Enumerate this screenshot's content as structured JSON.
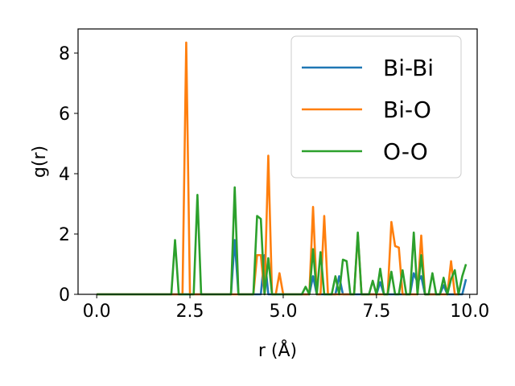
{
  "chart_data": {
    "type": "line",
    "title": "",
    "xlabel": "r (Å)",
    "ylabel": "g(r)",
    "xlim": [
      -0.5,
      10.2
    ],
    "ylim": [
      0,
      8.8
    ],
    "xticks": [
      0.0,
      2.5,
      5.0,
      7.5,
      10.0
    ],
    "xtick_labels": [
      "0.0",
      "2.5",
      "5.0",
      "7.5",
      "10.0"
    ],
    "yticks": [
      0,
      2,
      4,
      6,
      8
    ],
    "ytick_labels": [
      "0",
      "2",
      "4",
      "6",
      "8"
    ],
    "grid": false,
    "legend_position": "upper-right",
    "series": [
      {
        "name": "Bi-Bi",
        "color": "#1f77b4",
        "x": [
          0.0,
          3.6,
          3.7,
          3.8,
          4.4,
          4.5,
          4.6,
          5.7,
          5.8,
          5.9,
          6.4,
          6.5,
          6.6,
          7.5,
          7.6,
          7.7,
          8.4,
          8.5,
          8.6,
          8.7,
          8.8,
          9.2,
          9.3,
          9.4,
          9.8,
          9.9
        ],
        "y": [
          0.0,
          0.0,
          1.8,
          0.0,
          0.0,
          1.3,
          0.0,
          0.0,
          0.6,
          0.0,
          0.0,
          0.6,
          0.0,
          0.0,
          0.4,
          0.0,
          0.0,
          0.7,
          0.4,
          0.6,
          0.0,
          0.0,
          0.3,
          0.0,
          0.0,
          0.5
        ]
      },
      {
        "name": "Bi-O",
        "color": "#ff7f0e",
        "x": [
          0.0,
          2.3,
          2.4,
          2.5,
          4.2,
          4.3,
          4.4,
          4.5,
          4.6,
          4.7,
          4.8,
          4.9,
          5.0,
          5.7,
          5.8,
          5.9,
          6.0,
          6.1,
          6.2,
          6.8,
          6.9,
          7.0,
          7.1,
          7.8,
          7.9,
          8.0,
          8.1,
          8.2,
          8.6,
          8.7,
          8.8,
          9.3,
          9.4,
          9.5,
          9.6,
          9.7
        ],
        "y": [
          0.0,
          0.0,
          8.35,
          0.0,
          0.0,
          1.3,
          1.3,
          0.0,
          4.6,
          0.0,
          0.0,
          0.7,
          0.0,
          0.0,
          2.9,
          0.0,
          0.0,
          2.6,
          0.0,
          0.0,
          0.0,
          2.0,
          0.0,
          0.0,
          2.4,
          1.6,
          1.55,
          0.0,
          0.0,
          1.95,
          0.0,
          0.0,
          0.0,
          1.1,
          0.0,
          0.0
        ]
      },
      {
        "name": "O-O",
        "color": "#2ca02c",
        "x": [
          0.0,
          2.0,
          2.1,
          2.2,
          2.6,
          2.7,
          2.8,
          3.6,
          3.7,
          3.8,
          4.2,
          4.3,
          4.4,
          4.5,
          4.6,
          4.7,
          5.5,
          5.6,
          5.7,
          5.8,
          5.9,
          6.0,
          6.1,
          6.2,
          6.3,
          6.4,
          6.5,
          6.6,
          6.7,
          6.8,
          6.9,
          7.0,
          7.1,
          7.2,
          7.3,
          7.4,
          7.5,
          7.6,
          7.7,
          7.8,
          7.9,
          8.0,
          8.1,
          8.2,
          8.3,
          8.4,
          8.5,
          8.6,
          8.7,
          8.8,
          8.9,
          9.0,
          9.1,
          9.2,
          9.3,
          9.4,
          9.5,
          9.6,
          9.7,
          9.8,
          9.9
        ],
        "y": [
          0.0,
          0.0,
          1.8,
          0.0,
          0.0,
          3.3,
          0.0,
          0.0,
          3.55,
          0.0,
          0.0,
          2.6,
          2.5,
          0.0,
          1.2,
          0.0,
          0.0,
          0.25,
          0.0,
          1.5,
          0.0,
          1.4,
          0.0,
          0.0,
          0.0,
          0.6,
          0.0,
          1.15,
          1.1,
          0.0,
          0.0,
          2.05,
          0.0,
          0.0,
          0.0,
          0.45,
          0.0,
          0.85,
          0.0,
          0.0,
          0.75,
          0.0,
          0.0,
          0.8,
          0.0,
          0.0,
          2.05,
          0.0,
          1.3,
          0.0,
          0.0,
          0.7,
          0.0,
          0.0,
          0.55,
          0.0,
          0.5,
          0.8,
          0.0,
          0.6,
          1.0
        ]
      }
    ]
  }
}
